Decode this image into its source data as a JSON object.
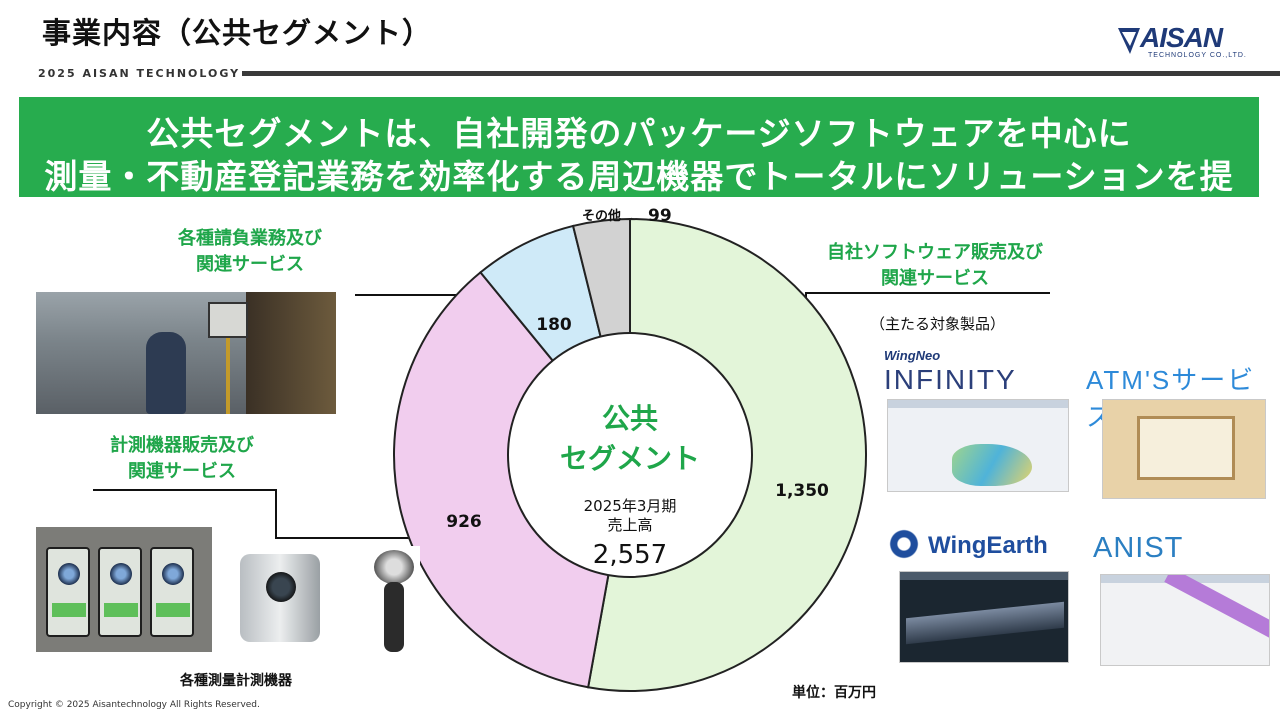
{
  "header": {
    "title": "事業内容（公共セグメント）",
    "sub_brand": "2025 AISAN TECHNOLOGY",
    "logo_text": "AISAN",
    "logo_sub": "TECHNOLOGY CO.,LTD."
  },
  "banner": {
    "line1": "公共セグメントは、自社開発のパッケージソフトウェアを中心に",
    "line2": "測量・不動産登記業務を効率化する周辺機器でトータルにソリューションを提案。"
  },
  "chart_data": {
    "type": "pie",
    "donut": true,
    "slices": [
      {
        "label": "自社ソフトウェア販売及び関連サービス",
        "value": 1350,
        "display": "1,350",
        "color": "#e3f5d9"
      },
      {
        "label": "計測機器販売及び関連サービス",
        "value": 926,
        "display": "926",
        "color": "#f1cdee"
      },
      {
        "label": "各種請負業務及び関連サービス",
        "value": 180,
        "display": "180",
        "color": "#cfeaf8"
      },
      {
        "label": "その他",
        "value": 99,
        "display": "99",
        "color": "#d2d2d2"
      }
    ],
    "center": {
      "title_line1": "公共",
      "title_line2": "セグメント",
      "period_line1": "2025年3月期",
      "period_line2": "売上高",
      "total": "2,557"
    },
    "unit": "単位：百万円"
  },
  "labels": {
    "software_line1": "自社ソフトウェア販売及び",
    "software_line2": "関連サービス",
    "software_note": "（主たる対象製品）",
    "contract_line1": "各種請負業務及び",
    "contract_line2": "関連サービス",
    "instrument_line1": "計測機器販売及び",
    "instrument_line2": "関連サービス",
    "other": "その他",
    "other_value": "99",
    "instrument_caption": "各種測量計測機器"
  },
  "products": {
    "wingneo_small": "WingNeo",
    "wingneo_big": "INFINITY",
    "atms": "ATM'Sサービス",
    "wingearth": "WingEarth",
    "anist": "ANIST"
  },
  "footer": {
    "copyright": "Copyright © 2025 Aisantechnology All Rights Reserved."
  }
}
